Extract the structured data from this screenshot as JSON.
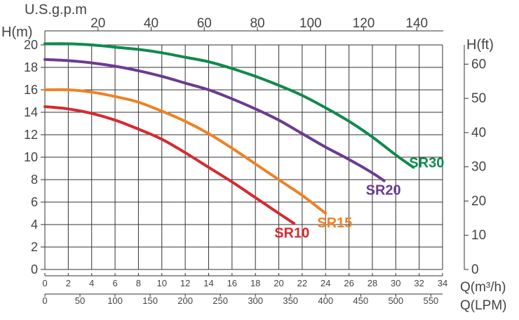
{
  "chart_data": {
    "type": "line",
    "top_unit_label": "U.S.g.p.m",
    "left_axis_label": "H(m)",
    "right_axis_label": "H(ft)",
    "bottom_axis_label_1": "Q(m³/h)",
    "bottom_axis_label_2": "Q(LPM)",
    "x_m3h": {
      "range": [
        0,
        34
      ],
      "ticks": [
        0,
        2,
        4,
        6,
        8,
        10,
        12,
        14,
        16,
        18,
        20,
        22,
        24,
        26,
        28,
        30,
        32,
        34
      ]
    },
    "y_m": {
      "range": [
        0,
        20
      ],
      "ticks": [
        0,
        2,
        4,
        6,
        8,
        10,
        12,
        14,
        16,
        18,
        20
      ]
    },
    "top_usgpm": {
      "ticks": [
        20,
        40,
        60,
        80,
        100,
        120,
        140
      ]
    },
    "right_ft": {
      "ticks": [
        0,
        10,
        20,
        30,
        40,
        50,
        60
      ]
    },
    "bottom_lpm": {
      "ticks": [
        0,
        50,
        100,
        150,
        200,
        250,
        300,
        350,
        400,
        450,
        500,
        550
      ]
    },
    "series": [
      {
        "name": "SR10",
        "label": "SR10",
        "color": "#d42a30",
        "x": [
          0,
          2,
          4,
          6,
          8,
          10,
          12,
          14,
          16,
          18,
          20,
          21.3
        ],
        "y": [
          14.5,
          14.3,
          13.9,
          13.3,
          12.5,
          11.6,
          10.4,
          9.1,
          7.8,
          6.4,
          5.0,
          4.1
        ]
      },
      {
        "name": "SR15",
        "label": "SR15",
        "color": "#ee8224",
        "x": [
          0,
          2,
          4,
          6,
          8,
          10,
          12,
          14,
          16,
          18,
          20,
          22,
          24
        ],
        "y": [
          16.0,
          16.0,
          15.8,
          15.4,
          14.9,
          14.1,
          13.2,
          12.1,
          10.8,
          9.4,
          8.0,
          6.6,
          5.0
        ]
      },
      {
        "name": "SR20",
        "label": "SR20",
        "color": "#6c3b91",
        "x": [
          0,
          2,
          4,
          6,
          8,
          10,
          12,
          14,
          16,
          18,
          20,
          22,
          24,
          26,
          28,
          29
        ],
        "y": [
          18.7,
          18.6,
          18.4,
          18.1,
          17.7,
          17.2,
          16.6,
          16.0,
          15.2,
          14.3,
          13.3,
          12.1,
          10.9,
          9.8,
          8.6,
          7.9
        ]
      },
      {
        "name": "SR30",
        "label": "SR30",
        "color": "#0f8a4c",
        "x": [
          0,
          2,
          4,
          6,
          8,
          10,
          12,
          14,
          16,
          18,
          20,
          22,
          24,
          26,
          28,
          30,
          31.5
        ],
        "y": [
          20.1,
          20.1,
          20.0,
          19.8,
          19.6,
          19.3,
          18.9,
          18.5,
          17.9,
          17.2,
          16.4,
          15.5,
          14.4,
          13.2,
          11.8,
          10.2,
          9.1
        ]
      }
    ]
  }
}
